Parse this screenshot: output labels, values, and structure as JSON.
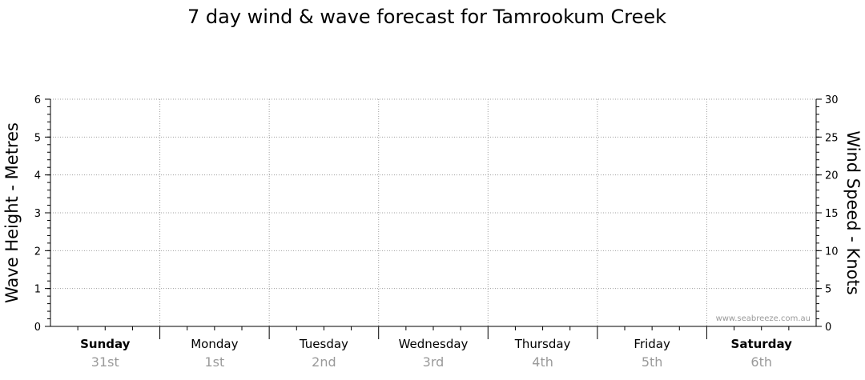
{
  "chart_data": {
    "type": "line",
    "title": "7 day wind & wave forecast for Tamrookum Creek",
    "ylabel_left": "Wave Height - Metres",
    "ylabel_right": "Wind Speed - Knots",
    "ylim_left": [
      0,
      6
    ],
    "ylim_right": [
      0,
      30
    ],
    "yticks_left": [
      "0",
      "1",
      "2",
      "3",
      "4",
      "5",
      "6"
    ],
    "yticks_right": [
      "0",
      "5",
      "10",
      "15",
      "20",
      "25",
      "30"
    ],
    "grid": true,
    "days": [
      {
        "name": "Sunday",
        "date": "31st",
        "bold": true
      },
      {
        "name": "Monday",
        "date": "1st",
        "bold": false
      },
      {
        "name": "Tuesday",
        "date": "2nd",
        "bold": false
      },
      {
        "name": "Wednesday",
        "date": "3rd",
        "bold": false
      },
      {
        "name": "Thursday",
        "date": "4th",
        "bold": false
      },
      {
        "name": "Friday",
        "date": "5th",
        "bold": false
      },
      {
        "name": "Saturday",
        "date": "6th",
        "bold": true
      }
    ],
    "series": [],
    "watermark": "www.seabreeze.com.au"
  }
}
